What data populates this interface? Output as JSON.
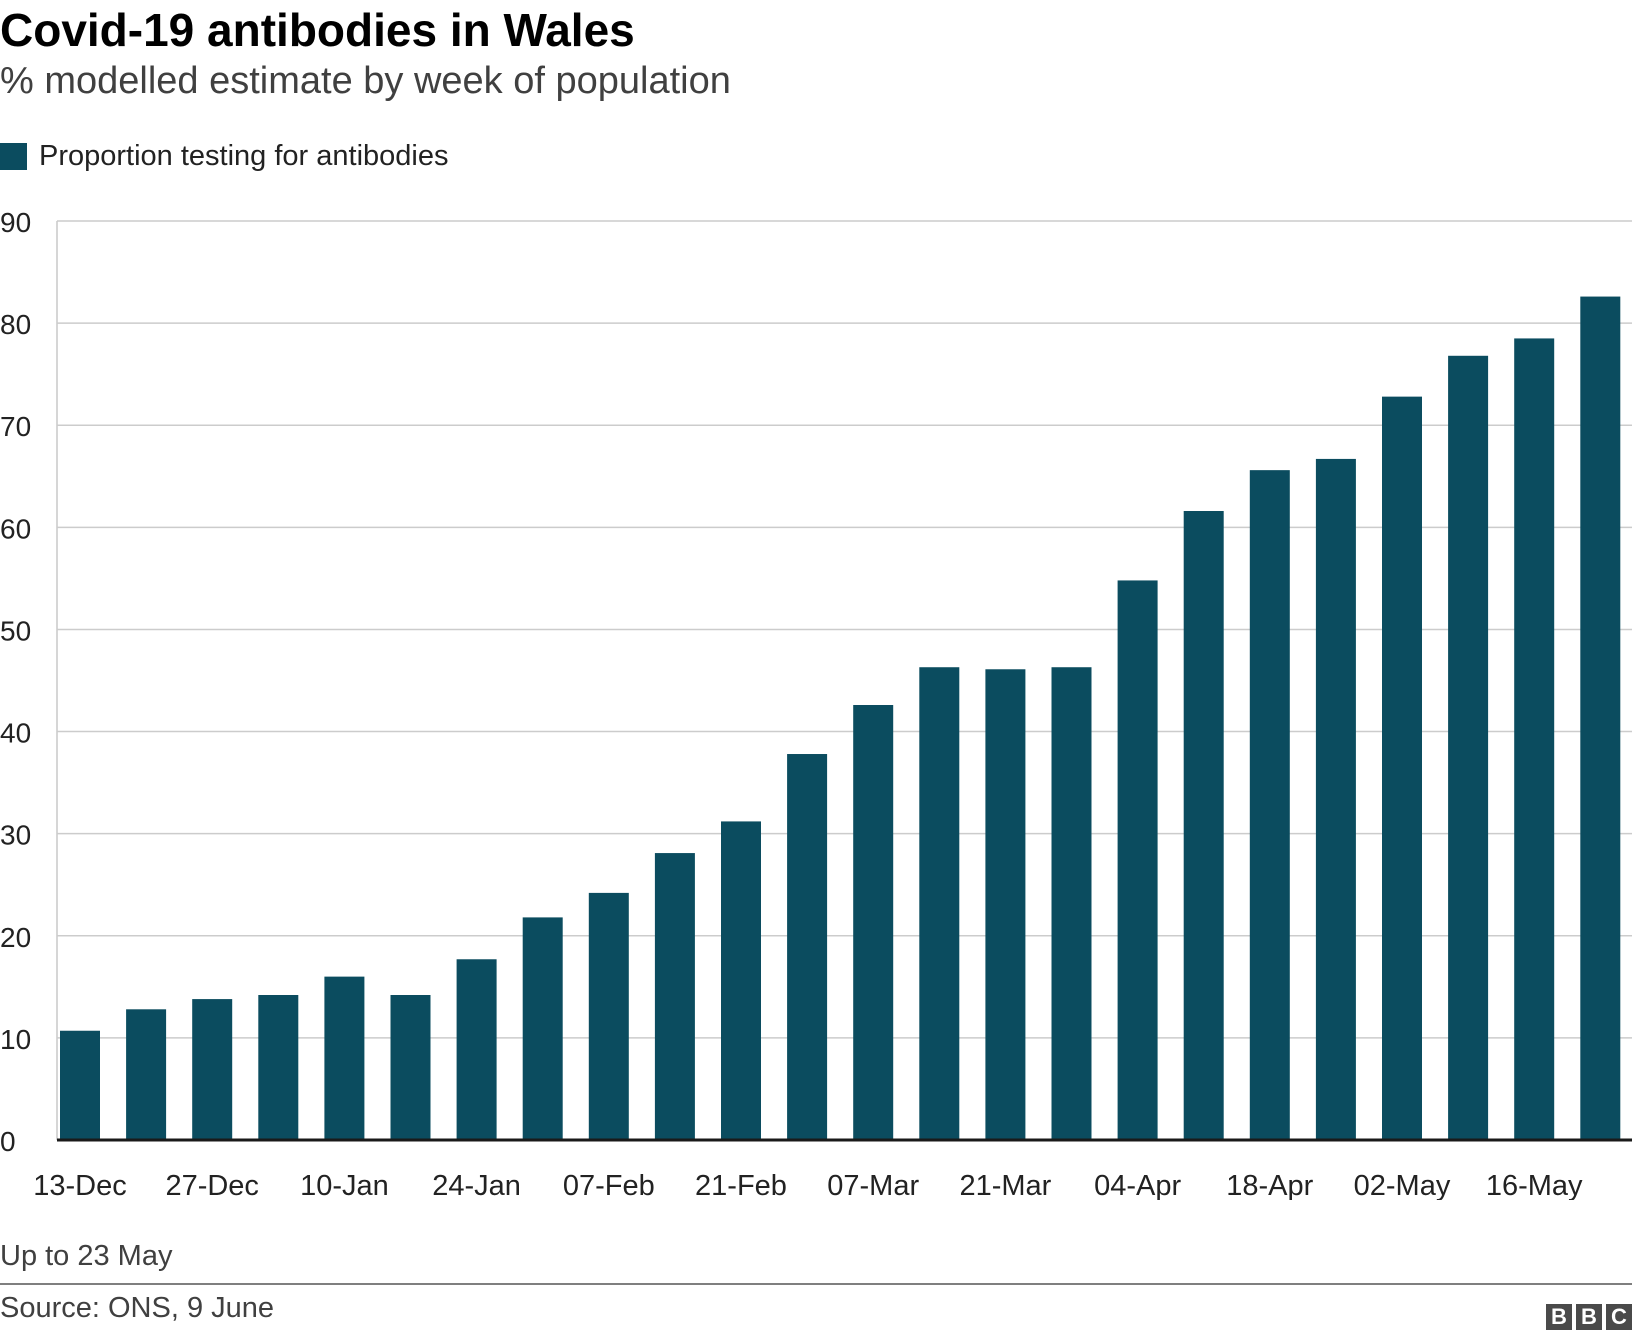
{
  "chart_data": {
    "type": "bar",
    "title": "Covid-19 antibodies in Wales",
    "subtitle": "% modelled estimate by week of population",
    "series": [
      {
        "name": "Proportion testing for antibodies",
        "color": "#0b4c5f",
        "values": [
          10.7,
          12.8,
          13.8,
          14.2,
          16.0,
          14.2,
          17.7,
          21.8,
          24.2,
          28.1,
          31.2,
          37.8,
          42.6,
          46.3,
          46.1,
          46.3,
          54.8,
          61.6,
          65.6,
          66.7,
          72.8,
          76.8,
          78.5,
          82.6
        ]
      }
    ],
    "tick_labels": [
      "13-Dec",
      "27-Dec",
      "10-Jan",
      "24-Jan",
      "07-Feb",
      "21-Feb",
      "07-Mar",
      "21-Mar",
      "04-Apr",
      "18-Apr",
      "02-May",
      "16-May"
    ],
    "label_every": 2,
    "xlabel": "",
    "ylabel": "",
    "ylim": [
      0,
      90
    ],
    "yticks": [
      0,
      10,
      20,
      30,
      40,
      50,
      60,
      70,
      80,
      90
    ],
    "grid": true,
    "legend_position": "top-left",
    "note": "Up to 23 May",
    "source": "Source: ONS, 9 June"
  },
  "branding": {
    "logo_letters": [
      "B",
      "B",
      "C"
    ]
  }
}
